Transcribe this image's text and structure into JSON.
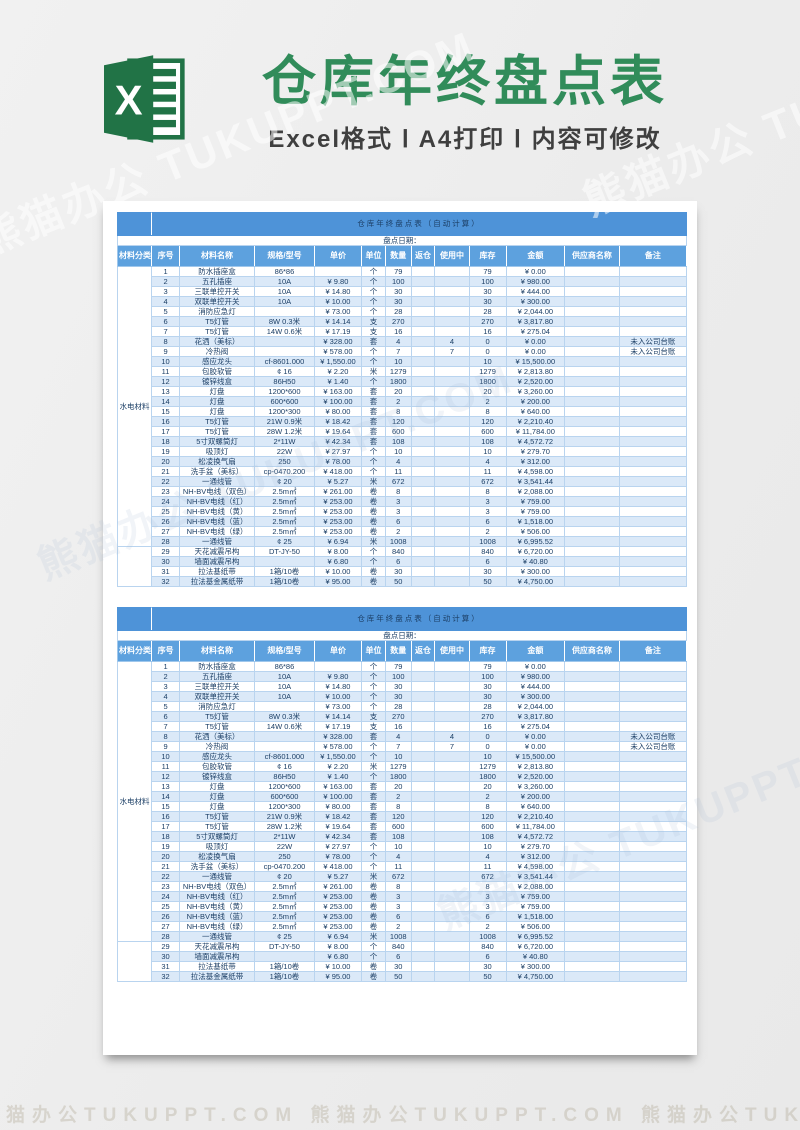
{
  "banner": {
    "title": "仓库年终盘点表",
    "subtitle": "Excel格式 Ⅰ A4打印 Ⅰ 内容可修改"
  },
  "watermark": {
    "text": "熊猫办公 TUKUPPT.COM",
    "bottom_text": "熊猫办公TUKUPPT.COM 熊猫办公TUKUPPT.COM 熊猫办公TUKUPPT.COM"
  },
  "colors": {
    "excel_green": "#217346",
    "title_green": "#318c5a",
    "table_title_blue": "#4e93d8",
    "header_blue": "#5da1de",
    "row_alt_blue": "#dbe9f8",
    "grid_border": "#b9d4ef",
    "page_bg": "#ededed"
  },
  "table": {
    "title": "仓库年终盘点表（自动计算）",
    "date_label": "盘点日期：",
    "columns": [
      "材料分类",
      "序号",
      "材料名称",
      "规格/型号",
      "单价",
      "单位",
      "数量",
      "返仓",
      "使用中",
      "库存",
      "金额",
      "供应商名称",
      "备注"
    ],
    "col_widths_pct": [
      6.0,
      4.9,
      13.2,
      10.5,
      8.3,
      4.2,
      4.5,
      4.2,
      6.0,
      6.5,
      10.3,
      9.6,
      11.8
    ],
    "category_label": "水电材料",
    "category_span": 28,
    "category2_label": "",
    "category2_span": 4,
    "rows": [
      [
        "1",
        "防水插座盒",
        "86*86",
        "",
        "个",
        "79",
        "",
        "",
        "79",
        "¥ 0.00",
        "",
        ""
      ],
      [
        "2",
        "五孔插座",
        "10A",
        "¥ 9.80",
        "个",
        "100",
        "",
        "",
        "100",
        "¥ 980.00",
        "",
        ""
      ],
      [
        "3",
        "三联单控开关",
        "10A",
        "¥ 14.80",
        "个",
        "30",
        "",
        "",
        "30",
        "¥ 444.00",
        "",
        ""
      ],
      [
        "4",
        "双联单控开关",
        "10A",
        "¥ 10.00",
        "个",
        "30",
        "",
        "",
        "30",
        "¥ 300.00",
        "",
        ""
      ],
      [
        "5",
        "消防应急灯",
        "",
        "¥ 73.00",
        "个",
        "28",
        "",
        "",
        "28",
        "¥ 2,044.00",
        "",
        ""
      ],
      [
        "6",
        "T5灯管",
        "8W 0.3米",
        "¥ 14.14",
        "支",
        "270",
        "",
        "",
        "270",
        "¥ 3,817.80",
        "",
        ""
      ],
      [
        "7",
        "T5灯管",
        "14W 0.6米",
        "¥ 17.19",
        "支",
        "16",
        "",
        "",
        "16",
        "¥ 275.04",
        "",
        ""
      ],
      [
        "8",
        "花洒（美标）",
        "",
        "¥ 328.00",
        "套",
        "4",
        "",
        "4",
        "0",
        "¥ 0.00",
        "",
        "未入公司台账"
      ],
      [
        "9",
        "冷热阀",
        "",
        "¥ 578.00",
        "个",
        "7",
        "",
        "7",
        "0",
        "¥ 0.00",
        "",
        "未入公司台账"
      ],
      [
        "10",
        "感应龙头",
        "cf-8601.000",
        "¥ 1,550.00",
        "个",
        "10",
        "",
        "",
        "10",
        "¥ 15,500.00",
        "",
        ""
      ],
      [
        "11",
        "包胶软管",
        "¢ 16",
        "¥ 2.20",
        "米",
        "1279",
        "",
        "",
        "1279",
        "¥ 2,813.80",
        "",
        ""
      ],
      [
        "12",
        "镀锌线盒",
        "86H50",
        "¥ 1.40",
        "个",
        "1800",
        "",
        "",
        "1800",
        "¥ 2,520.00",
        "",
        ""
      ],
      [
        "13",
        "灯盘",
        "1200*600",
        "¥ 163.00",
        "套",
        "20",
        "",
        "",
        "20",
        "¥ 3,260.00",
        "",
        ""
      ],
      [
        "14",
        "灯盘",
        "600*600",
        "¥ 100.00",
        "套",
        "2",
        "",
        "",
        "2",
        "¥ 200.00",
        "",
        ""
      ],
      [
        "15",
        "灯盘",
        "1200*300",
        "¥ 80.00",
        "套",
        "8",
        "",
        "",
        "8",
        "¥ 640.00",
        "",
        ""
      ],
      [
        "16",
        "T5灯管",
        "21W 0.9米",
        "¥ 18.42",
        "套",
        "120",
        "",
        "",
        "120",
        "¥ 2,210.40",
        "",
        ""
      ],
      [
        "17",
        "T5灯管",
        "28W 1.2米",
        "¥ 19.64",
        "套",
        "600",
        "",
        "",
        "600",
        "¥ 11,784.00",
        "",
        ""
      ],
      [
        "18",
        "5寸双螺筒灯",
        "2*11W",
        "¥ 42.34",
        "套",
        "108",
        "",
        "",
        "108",
        "¥ 4,572.72",
        "",
        ""
      ],
      [
        "19",
        "吸顶灯",
        "22W",
        "¥ 27.97",
        "个",
        "10",
        "",
        "",
        "10",
        "¥ 279.70",
        "",
        ""
      ],
      [
        "20",
        "松凌换气扇",
        "250",
        "¥ 78.00",
        "个",
        "4",
        "",
        "",
        "4",
        "¥ 312.00",
        "",
        ""
      ],
      [
        "21",
        "洗手盆（美标）",
        "cp-0470.200",
        "¥ 418.00",
        "个",
        "11",
        "",
        "",
        "11",
        "¥ 4,598.00",
        "",
        ""
      ],
      [
        "22",
        "一通线管",
        "¢ 20",
        "¥ 5.27",
        "米",
        "672",
        "",
        "",
        "672",
        "¥ 3,541.44",
        "",
        ""
      ],
      [
        "23",
        "NH-BV电线（双色）",
        "2.5m㎡",
        "¥ 261.00",
        "卷",
        "8",
        "",
        "",
        "8",
        "¥ 2,088.00",
        "",
        ""
      ],
      [
        "24",
        "NH-BV电线（红）",
        "2.5m㎡",
        "¥ 253.00",
        "卷",
        "3",
        "",
        "",
        "3",
        "¥ 759.00",
        "",
        ""
      ],
      [
        "25",
        "NH-BV电线（黄）",
        "2.5m㎡",
        "¥ 253.00",
        "卷",
        "3",
        "",
        "",
        "3",
        "¥ 759.00",
        "",
        ""
      ],
      [
        "26",
        "NH-BV电线（蓝）",
        "2.5m㎡",
        "¥ 253.00",
        "卷",
        "6",
        "",
        "",
        "6",
        "¥ 1,518.00",
        "",
        ""
      ],
      [
        "27",
        "NH-BV电线（绿）",
        "2.5m㎡",
        "¥ 253.00",
        "卷",
        "2",
        "",
        "",
        "2",
        "¥ 506.00",
        "",
        ""
      ],
      [
        "28",
        "一通线管",
        "¢ 25",
        "¥ 6.94",
        "米",
        "1008",
        "",
        "",
        "1008",
        "¥ 6,995.52",
        "",
        ""
      ],
      [
        "29",
        "天花减震吊构",
        "DT-JY-50",
        "¥ 8.00",
        "个",
        "840",
        "",
        "",
        "840",
        "¥ 6,720.00",
        "",
        ""
      ],
      [
        "30",
        "墙面减震吊构",
        "",
        "¥ 6.80",
        "个",
        "6",
        "",
        "",
        "6",
        "¥ 40.80",
        "",
        ""
      ],
      [
        "31",
        "拉法基纸带",
        "1箱/10卷",
        "¥ 10.00",
        "卷",
        "30",
        "",
        "",
        "30",
        "¥ 300.00",
        "",
        ""
      ],
      [
        "32",
        "拉法基金属纸带",
        "1箱/10卷",
        "¥ 95.00",
        "卷",
        "50",
        "",
        "",
        "50",
        "¥ 4,750.00",
        "",
        ""
      ]
    ]
  }
}
